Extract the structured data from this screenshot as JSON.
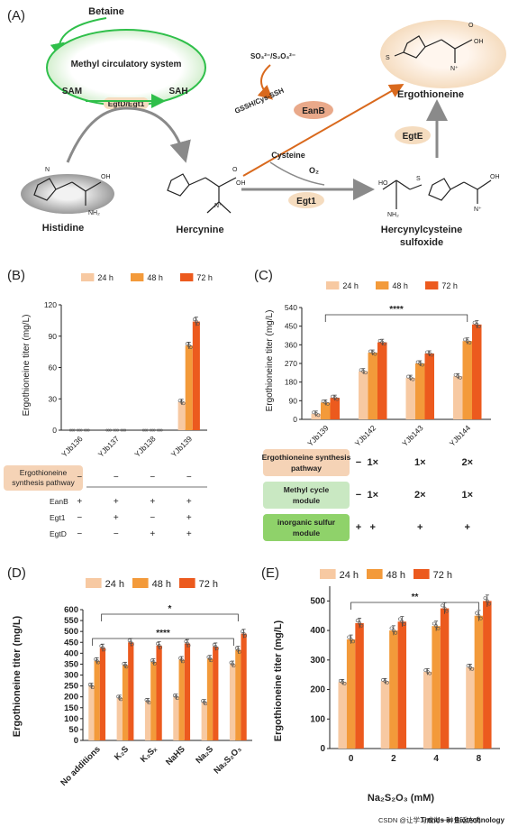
{
  "panelA": {
    "label": "(A)",
    "betaine": "Betaine",
    "methyl_cycle": "Methyl circulatory system",
    "sam": "SAM",
    "sah": "SAH",
    "egtd_egt1": "EgtD/Egt1",
    "so_label": "SO₃²⁻/S₂O₃²⁻",
    "gssh": "GSSH/Cys-SSH",
    "eanb": "EanB",
    "ergothioneine": "Ergothioneine",
    "egte": "EgtE",
    "cysteine": "Cysteine",
    "o2": "O₂",
    "egt1": "Egt1",
    "histidine": "Histidine",
    "hercynine": "Hercynine",
    "hercynylcysteine": "Hercynylcysteine",
    "sulfoxide": "sulfoxide",
    "colors": {
      "green": "#2fbf4a",
      "orange": "#d9691d",
      "grey": "#8a8a8a",
      "ellipse": "#f5dcbf"
    }
  },
  "series_colors": [
    "#f7c9a2",
    "#f39a3a",
    "#ec5a1e"
  ],
  "legend": [
    "24 h",
    "48 h",
    "72 h"
  ],
  "panelB": {
    "label": "(B)",
    "table_title": "Ergothioneine synthesis pathway",
    "rows": [
      {
        "label": "EanB",
        "values": [
          "+",
          "+",
          "+",
          "+"
        ]
      },
      {
        "label": "Egt1",
        "values": [
          "−",
          "+",
          "−",
          "+"
        ]
      },
      {
        "label": "EgtD",
        "values": [
          "−",
          "−",
          "+",
          "+"
        ]
      }
    ],
    "pathway_values": [
      "−",
      "−",
      "−",
      "−"
    ]
  },
  "panelC": {
    "label": "(C)",
    "significance": "****",
    "table": [
      {
        "label": "Ergothioneine synthesis pathway",
        "color": "#f5d3b6",
        "values": [
          "−",
          "1×",
          "1×",
          "2×"
        ]
      },
      {
        "label": "Methyl cycle module",
        "color": "#c9e8c2",
        "values": [
          "−",
          "1×",
          "2×",
          "1×"
        ]
      },
      {
        "label": "inorganic sulfur module",
        "color": "#8fd26a",
        "values": [
          "+",
          "+",
          "+",
          "+"
        ]
      }
    ]
  },
  "panelD": {
    "label": "(D)",
    "sig_top": "*",
    "sig_bottom": "****"
  },
  "panelE": {
    "label": "(E)",
    "significance": "**"
  },
  "footer": {
    "journal": "Trends in Biotechnology",
    "watermark": "CSDN @让学习成为一种生活方式"
  },
  "chart_data": [
    {
      "type": "bar",
      "panel": "B",
      "categories": [
        "YJb136",
        "YJb137",
        "YJb138",
        "YJb139"
      ],
      "series": [
        {
          "name": "24 h",
          "values": [
            0,
            0,
            0,
            27
          ]
        },
        {
          "name": "48 h",
          "values": [
            0,
            0,
            0,
            81
          ]
        },
        {
          "name": "72 h",
          "values": [
            0,
            0,
            0,
            104
          ]
        }
      ],
      "ylabel": "Ergothioneine titer (mg/L)",
      "ylim": [
        0,
        120
      ],
      "yticks": [
        "0",
        "30",
        "60",
        "90",
        "120"
      ]
    },
    {
      "type": "bar",
      "panel": "C",
      "categories": [
        "YJb139",
        "YJb142",
        "YJb143",
        "YJb144"
      ],
      "series": [
        {
          "name": "24 h",
          "values": [
            27,
            232,
            200,
            208
          ]
        },
        {
          "name": "48 h",
          "values": [
            81,
            322,
            270,
            378
          ]
        },
        {
          "name": "72 h",
          "values": [
            104,
            372,
            318,
            458
          ]
        }
      ],
      "ylabel": "Ergothioneine titer (mg/L)",
      "ylim": [
        0,
        540
      ],
      "yticks": [
        "0",
        "90",
        "180",
        "270",
        "360",
        "450",
        "540"
      ]
    },
    {
      "type": "bar",
      "panel": "D",
      "categories": [
        "No additions",
        "K₂S",
        "K₂Sₓ",
        "NaHS",
        "Na₂S",
        "Na₂S₂O₃"
      ],
      "series": [
        {
          "name": "24 h",
          "values": [
            250,
            195,
            180,
            200,
            175,
            350
          ]
        },
        {
          "name": "48 h",
          "values": [
            365,
            345,
            360,
            370,
            375,
            415
          ]
        },
        {
          "name": "72 h",
          "values": [
            425,
            450,
            435,
            445,
            430,
            490
          ]
        }
      ],
      "ylabel": "Ergothioneine titer (mg/L)",
      "ylim": [
        0,
        600
      ],
      "yticks": [
        "0",
        "50",
        "100",
        "150",
        "200",
        "250",
        "300",
        "350",
        "400",
        "450",
        "500",
        "550",
        "600"
      ]
    },
    {
      "type": "bar",
      "panel": "E",
      "categories": [
        "0",
        "2",
        "4",
        "8"
      ],
      "series": [
        {
          "name": "24 h",
          "values": [
            225,
            228,
            260,
            275
          ]
        },
        {
          "name": "48 h",
          "values": [
            370,
            400,
            415,
            450
          ]
        },
        {
          "name": "72 h",
          "values": [
            425,
            430,
            475,
            500
          ]
        }
      ],
      "xlabel": "Na₂S₂O₃ (mM)",
      "ylabel": "Ergothioneine titer (mg/L)",
      "ylim": [
        0,
        550
      ],
      "yticks": [
        "0",
        "100",
        "200",
        "300",
        "400",
        "500"
      ]
    }
  ]
}
